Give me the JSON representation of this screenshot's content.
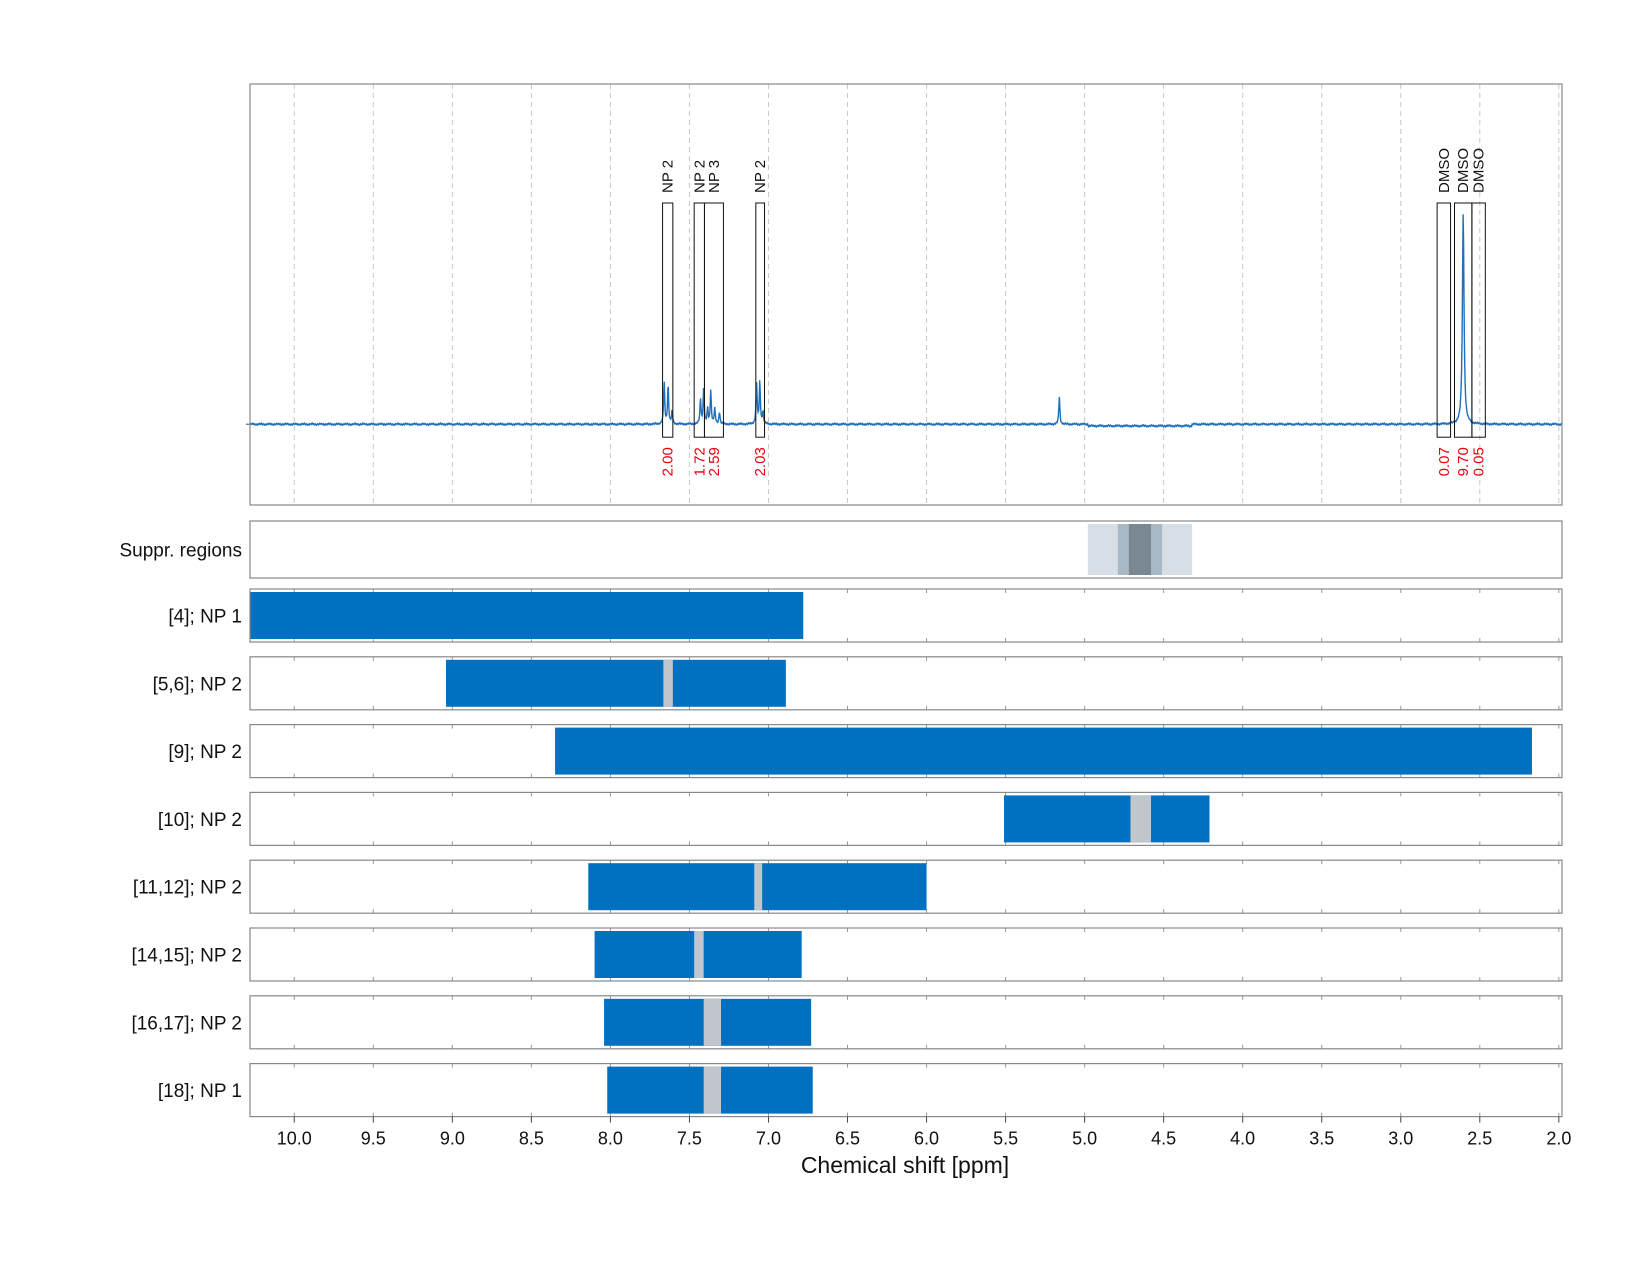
{
  "chart_data": {
    "type": "line",
    "xlabel": "Chemical shift [ppm]",
    "xlim": [
      10.28,
      1.98
    ],
    "x_ticks": [
      "10.0",
      "9.5",
      "9.0",
      "8.5",
      "8.0",
      "7.5",
      "7.0",
      "6.5",
      "6.0",
      "5.5",
      "5.0",
      "4.5",
      "4.0",
      "3.5",
      "3.0",
      "2.5",
      "2.0"
    ],
    "spectrum": {
      "baseline": 0,
      "ylim": [
        -0.38,
        1.6
      ],
      "color": "#1f6fbd",
      "peaks": [
        {
          "x": 7.66,
          "h": 0.2
        },
        {
          "x": 7.635,
          "h": 0.19
        },
        {
          "x": 7.61,
          "h": 0.06
        },
        {
          "x": 7.43,
          "h": 0.12
        },
        {
          "x": 7.41,
          "h": 0.16
        },
        {
          "x": 7.385,
          "h": 0.07
        },
        {
          "x": 7.365,
          "h": 0.16
        },
        {
          "x": 7.34,
          "h": 0.07
        },
        {
          "x": 7.31,
          "h": 0.06
        },
        {
          "x": 7.075,
          "h": 0.19
        },
        {
          "x": 7.055,
          "h": 0.2
        },
        {
          "x": 7.035,
          "h": 0.06
        },
        {
          "x": 5.16,
          "h": 0.13
        },
        {
          "x": 2.605,
          "h": 1.0
        }
      ]
    },
    "integration_regions": [
      {
        "label": "NP 2",
        "value": "2.00",
        "x0": 7.67,
        "x1": 7.605
      },
      {
        "label": "NP 2",
        "value": "1.72",
        "x0": 7.47,
        "x1": 7.405
      },
      {
        "label": "NP 3",
        "value": "2.59",
        "x0": 7.405,
        "x1": 7.285
      },
      {
        "label": "NP 2",
        "value": "2.03",
        "x0": 7.08,
        "x1": 7.025
      },
      {
        "label": "DMSO",
        "value": "0.07",
        "x0": 2.77,
        "x1": 2.685
      },
      {
        "label": "DMSO",
        "value": "9.70",
        "x0": 2.66,
        "x1": 2.55
      },
      {
        "label": "DMSO",
        "value": "0.05",
        "x0": 2.55,
        "x1": 2.465
      }
    ],
    "suppressed_regions": {
      "label": "Suppr. regions",
      "bands": [
        {
          "x0": 4.98,
          "x1": 4.32,
          "color": "#d6dfe6"
        },
        {
          "x0": 4.79,
          "x1": 4.51,
          "color": "#a9b8c5"
        },
        {
          "x0": 4.72,
          "x1": 4.58,
          "color": "#7a8894"
        }
      ]
    },
    "rows": [
      {
        "label": "[4]; NP 1",
        "x0": 10.28,
        "x1": 6.78,
        "gaps": []
      },
      {
        "label": "[5,6]; NP 2",
        "x0": 9.04,
        "x1": 6.89,
        "gaps": [
          {
            "x0": 7.665,
            "x1": 7.605
          }
        ]
      },
      {
        "label": "[9]; NP 2",
        "x0": 8.35,
        "x1": 2.17,
        "gaps": []
      },
      {
        "label": "[10]; NP 2",
        "x0": 5.51,
        "x1": 4.21,
        "gaps": [
          {
            "x0": 4.71,
            "x1": 4.58
          }
        ]
      },
      {
        "label": "[11,12]; NP 2",
        "x0": 8.14,
        "x1": 6.0,
        "gaps": [
          {
            "x0": 7.09,
            "x1": 7.04
          }
        ]
      },
      {
        "label": "[14,15]; NP 2",
        "x0": 8.1,
        "x1": 6.79,
        "gaps": [
          {
            "x0": 7.47,
            "x1": 7.41
          }
        ]
      },
      {
        "label": "[16,17]; NP 2",
        "x0": 8.04,
        "x1": 6.73,
        "gaps": [
          {
            "x0": 7.41,
            "x1": 7.3
          }
        ]
      },
      {
        "label": "[18]; NP 1",
        "x0": 8.02,
        "x1": 6.72,
        "gaps": [
          {
            "x0": 7.41,
            "x1": 7.3
          }
        ]
      }
    ],
    "colors": {
      "bar": "#0070c0",
      "gap": "#c0c6cc",
      "integration_value": "#e8000b",
      "frame": "#888888",
      "grid": "#c8c8c8"
    },
    "grid": true
  }
}
